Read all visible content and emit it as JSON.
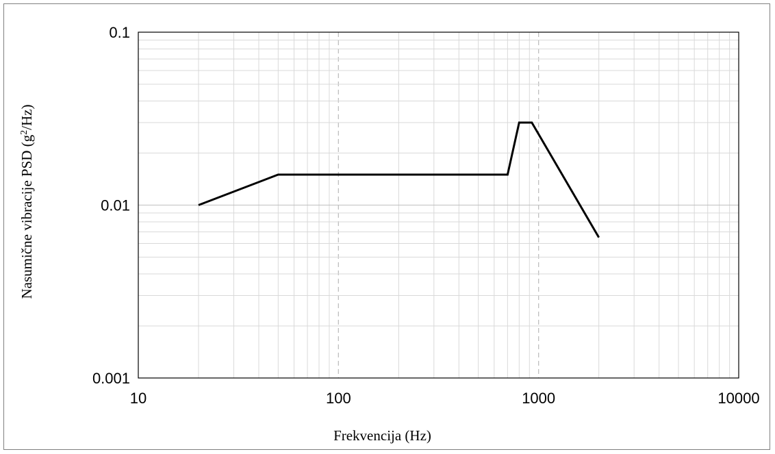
{
  "chart_data": {
    "type": "line",
    "title": "",
    "xlabel": "Frekvencija (Hz)",
    "ylabel_main": "Nasumične vibracije PSD (g",
    "ylabel_sup": "2",
    "ylabel_tail": "/Hz)",
    "x_scale": "log",
    "y_scale": "log",
    "xlim": [
      10,
      10000
    ],
    "ylim": [
      0.001,
      0.1
    ],
    "x_ticks": [
      10,
      100,
      1000,
      10000
    ],
    "x_tick_labels": [
      "10",
      "100",
      "1000",
      "10000"
    ],
    "y_ticks": [
      0.001,
      0.01,
      0.1
    ],
    "y_tick_labels": [
      "0.001",
      "0.01",
      "0.1"
    ],
    "grid": "on",
    "legend": "none",
    "series_color": "#000000",
    "series": [
      {
        "x": [
          20,
          50,
          700,
          800,
          925,
          2000
        ],
        "y": [
          0.01,
          0.015,
          0.015,
          0.03,
          0.03,
          0.0065
        ]
      }
    ]
  }
}
